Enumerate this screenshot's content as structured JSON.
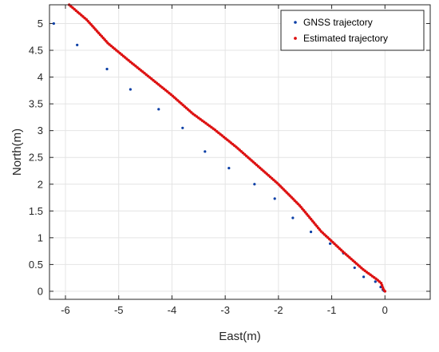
{
  "chart_data": {
    "type": "scatter",
    "title": "",
    "xlabel": "East(m)",
    "ylabel": "North(m)",
    "xlim": [
      -6.3,
      0.85
    ],
    "ylim": [
      -0.15,
      5.35
    ],
    "xticks": [
      -6,
      -5,
      -4,
      -3,
      -2,
      -1,
      0
    ],
    "yticks": [
      0,
      0.5,
      1,
      1.5,
      2,
      2.5,
      3,
      3.5,
      4,
      4.5,
      5
    ],
    "xtick_labels": [
      "-6",
      "-5",
      "-4",
      "-3",
      "-2",
      "-1",
      "0"
    ],
    "ytick_labels": [
      "0",
      "0.5",
      "1",
      "1.5",
      "2",
      "2.5",
      "3",
      "3.5",
      "4",
      "4.5",
      "5"
    ],
    "grid": true,
    "legend_position": "top-right",
    "series": [
      {
        "name": "GNSS trajectory",
        "color": "#0b3fa6",
        "marker_size": 1.6,
        "points": [
          [
            -6.22,
            5.0
          ],
          [
            -5.78,
            4.6
          ],
          [
            -5.22,
            4.15
          ],
          [
            -4.78,
            3.77
          ],
          [
            -4.25,
            3.4
          ],
          [
            -3.8,
            3.05
          ],
          [
            -3.38,
            2.61
          ],
          [
            -2.93,
            2.3
          ],
          [
            -2.45,
            2.0
          ],
          [
            -2.07,
            1.73
          ],
          [
            -1.73,
            1.37
          ],
          [
            -1.39,
            1.11
          ],
          [
            -1.03,
            0.89
          ],
          [
            -0.78,
            0.71
          ],
          [
            -0.57,
            0.44
          ],
          [
            -0.4,
            0.27
          ],
          [
            -0.18,
            0.18
          ],
          [
            -0.08,
            0.08
          ],
          [
            -0.04,
            0.03
          ],
          [
            -0.02,
            0.01
          ]
        ]
      },
      {
        "name": "Estimated trajectory",
        "color": "#dd1111",
        "marker_size": 1.75,
        "path": [
          [
            -5.93,
            5.35
          ],
          [
            -5.6,
            5.07
          ],
          [
            -5.2,
            4.63
          ],
          [
            -4.8,
            4.3
          ],
          [
            -4.4,
            3.98
          ],
          [
            -4.0,
            3.66
          ],
          [
            -3.6,
            3.31
          ],
          [
            -3.2,
            3.02
          ],
          [
            -2.8,
            2.7
          ],
          [
            -2.4,
            2.35
          ],
          [
            -2.0,
            2.0
          ],
          [
            -1.6,
            1.6
          ],
          [
            -1.2,
            1.12
          ],
          [
            -0.8,
            0.75
          ],
          [
            -0.4,
            0.4
          ],
          [
            -0.15,
            0.22
          ],
          [
            -0.07,
            0.15
          ],
          [
            -0.04,
            0.07
          ],
          [
            -0.02,
            0.02
          ],
          [
            0.0,
            0.0
          ]
        ],
        "point_count": 190
      }
    ]
  }
}
